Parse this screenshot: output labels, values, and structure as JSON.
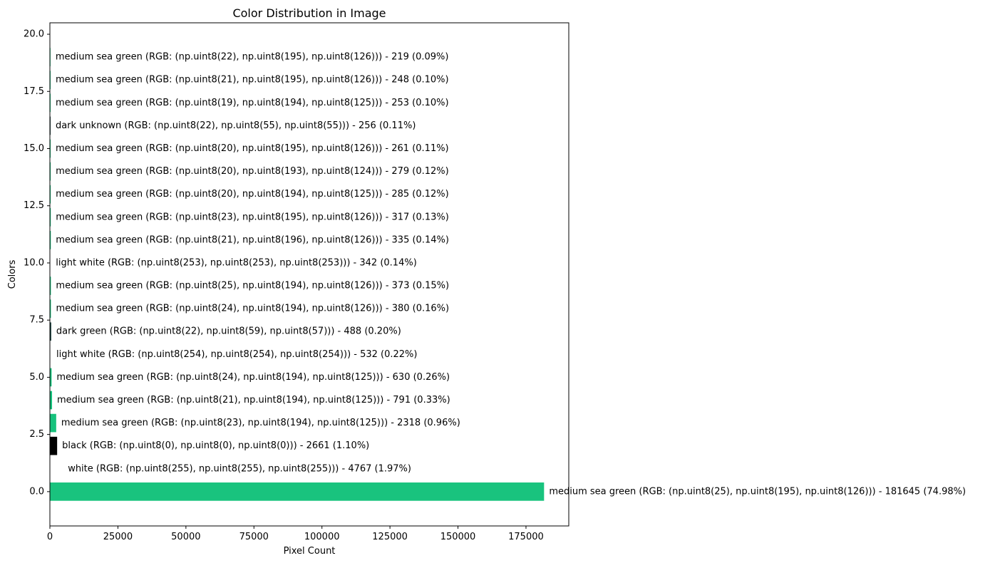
{
  "chart_data": {
    "type": "bar",
    "orientation": "horizontal",
    "title": "Color Distribution in Image",
    "xlabel": "Pixel Count",
    "ylabel": "Colors",
    "xlim": [
      0,
      190730
    ],
    "ylim": [
      -1.5,
      20.5
    ],
    "xticks": [
      0,
      25000,
      50000,
      75000,
      100000,
      125000,
      150000,
      175000
    ],
    "xtick_labels": [
      "0",
      "25000",
      "50000",
      "75000",
      "100000",
      "125000",
      "150000",
      "175000"
    ],
    "yticks": [
      0,
      2.5,
      5,
      7.5,
      10,
      12.5,
      15,
      17.5,
      20
    ],
    "ytick_labels": [
      "0.0",
      "2.5",
      "5.0",
      "7.5",
      "10.0",
      "12.5",
      "15.0",
      "17.5",
      "20.0"
    ],
    "grid": false,
    "bars": [
      {
        "y": 0,
        "value": 181645,
        "color": "#19c37e",
        "label": "medium sea green (RGB: (np.uint8(25), np.uint8(195), np.uint8(126))) - 181645 (74.98%)"
      },
      {
        "y": 1,
        "value": 4767,
        "color": "#ffffff",
        "label": "white (RGB: (np.uint8(255), np.uint8(255), np.uint8(255))) - 4767 (1.97%)"
      },
      {
        "y": 2,
        "value": 2661,
        "color": "#000000",
        "label": "black (RGB: (np.uint8(0), np.uint8(0), np.uint8(0))) - 2661 (1.10%)"
      },
      {
        "y": 3,
        "value": 2318,
        "color": "#17c27d",
        "label": "medium sea green (RGB: (np.uint8(23), np.uint8(194), np.uint8(125))) - 2318 (0.96%)"
      },
      {
        "y": 4,
        "value": 791,
        "color": "#15c27d",
        "label": "medium sea green (RGB: (np.uint8(21), np.uint8(194), np.uint8(125))) - 791 (0.33%)"
      },
      {
        "y": 5,
        "value": 630,
        "color": "#18c27d",
        "label": "medium sea green (RGB: (np.uint8(24), np.uint8(194), np.uint8(125))) - 630 (0.26%)"
      },
      {
        "y": 6,
        "value": 532,
        "color": "#fefefe",
        "label": "light white (RGB: (np.uint8(254), np.uint8(254), np.uint8(254))) - 532 (0.22%)"
      },
      {
        "y": 7,
        "value": 488,
        "color": "#163b39",
        "label": "dark green (RGB: (np.uint8(22), np.uint8(59), np.uint8(57))) - 488 (0.20%)"
      },
      {
        "y": 8,
        "value": 380,
        "color": "#18c27e",
        "label": "medium sea green (RGB: (np.uint8(24), np.uint8(194), np.uint8(126))) - 380 (0.16%)"
      },
      {
        "y": 9,
        "value": 373,
        "color": "#19c27e",
        "label": "medium sea green (RGB: (np.uint8(25), np.uint8(194), np.uint8(126))) - 373 (0.15%)"
      },
      {
        "y": 10,
        "value": 342,
        "color": "#fdfdfd",
        "label": "light white (RGB: (np.uint8(253), np.uint8(253), np.uint8(253))) - 342 (0.14%)"
      },
      {
        "y": 11,
        "value": 335,
        "color": "#15c47e",
        "label": "medium sea green (RGB: (np.uint8(21), np.uint8(196), np.uint8(126))) - 335 (0.14%)"
      },
      {
        "y": 12,
        "value": 317,
        "color": "#17c37e",
        "label": "medium sea green (RGB: (np.uint8(23), np.uint8(195), np.uint8(126))) - 317 (0.13%)"
      },
      {
        "y": 13,
        "value": 285,
        "color": "#14c27d",
        "label": "medium sea green (RGB: (np.uint8(20), np.uint8(194), np.uint8(125))) - 285 (0.12%)"
      },
      {
        "y": 14,
        "value": 279,
        "color": "#14c17c",
        "label": "medium sea green (RGB: (np.uint8(20), np.uint8(193), np.uint8(124))) - 279 (0.12%)"
      },
      {
        "y": 15,
        "value": 261,
        "color": "#14c37e",
        "label": "medium sea green (RGB: (np.uint8(20), np.uint8(195), np.uint8(126))) - 261 (0.11%)"
      },
      {
        "y": 16,
        "value": 256,
        "color": "#163737",
        "label": "dark unknown (RGB: (np.uint8(22), np.uint8(55), np.uint8(55))) - 256 (0.11%)"
      },
      {
        "y": 17,
        "value": 253,
        "color": "#13c27d",
        "label": "medium sea green (RGB: (np.uint8(19), np.uint8(194), np.uint8(125))) - 253 (0.10%)"
      },
      {
        "y": 18,
        "value": 248,
        "color": "#15c37e",
        "label": "medium sea green (RGB: (np.uint8(21), np.uint8(195), np.uint8(126))) - 248 (0.10%)"
      },
      {
        "y": 19,
        "value": 219,
        "color": "#16c37e",
        "label": "medium sea green (RGB: (np.uint8(22), np.uint8(195), np.uint8(126))) - 219 (0.09%)"
      }
    ]
  }
}
